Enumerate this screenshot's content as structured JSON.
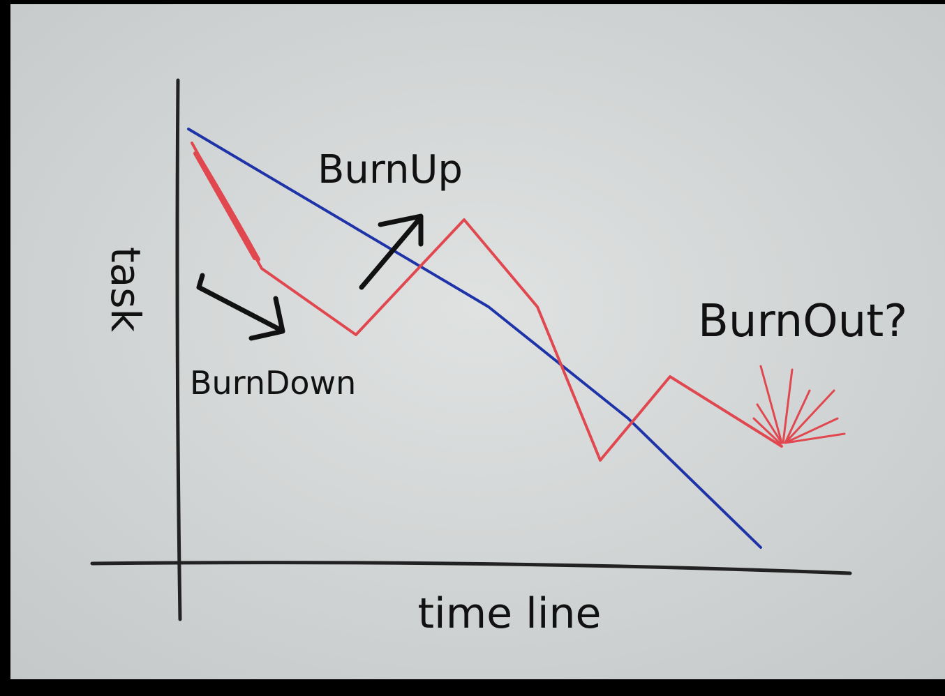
{
  "labels": {
    "y_axis": "task",
    "x_axis": "time line",
    "burn_up": "BurnUp",
    "burn_down": "BurnDown",
    "burn_out": "BurnOut?"
  }
}
